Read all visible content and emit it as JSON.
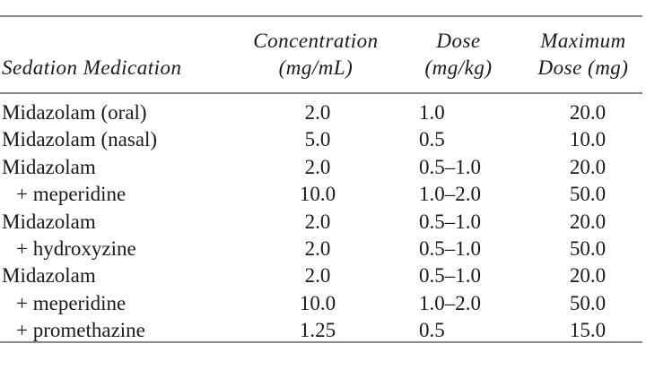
{
  "table": {
    "headers": {
      "medication": [
        "Sedation Medication"
      ],
      "concentration": [
        "Concentration",
        "(mg/mL)"
      ],
      "dose": [
        "Dose",
        "(mg/kg)"
      ],
      "max_dose": [
        "Maximum",
        "Dose (mg)"
      ]
    },
    "rows": [
      {
        "name": "Midazolam (oral)",
        "concentration": "2.0",
        "dose": "1.0",
        "max_dose": "20.0"
      },
      {
        "name": "Midazolam (nasal)",
        "concentration": "5.0",
        "dose": "0.5",
        "max_dose": "10.0"
      },
      {
        "name": "Midazolam",
        "concentration": "2.0",
        "dose": "0.5–1.0",
        "max_dose": "20.0"
      },
      {
        "name": "+ meperidine",
        "concentration": "10.0",
        "dose": "1.0–2.0",
        "max_dose": "50.0"
      },
      {
        "name": "Midazolam",
        "concentration": "2.0",
        "dose": "0.5–1.0",
        "max_dose": "20.0"
      },
      {
        "name": "+ hydroxyzine",
        "concentration": "2.0",
        "dose": "0.5–1.0",
        "max_dose": "50.0"
      },
      {
        "name": "Midazolam",
        "concentration": "2.0",
        "dose": "0.5–1.0",
        "max_dose": "20.0"
      },
      {
        "name": "+ meperidine",
        "concentration": "10.0",
        "dose": "1.0–2.0",
        "max_dose": "50.0"
      },
      {
        "name": "+ promethazine",
        "concentration": "1.25",
        "dose": "0.5",
        "max_dose": "15.0"
      }
    ]
  }
}
